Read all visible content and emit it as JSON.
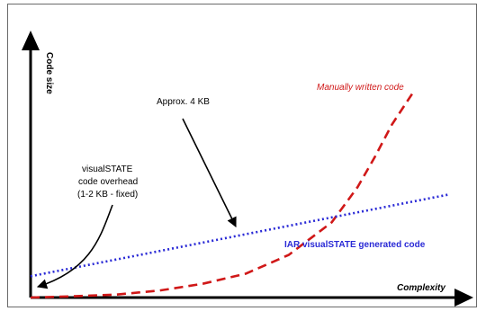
{
  "chart_data": {
    "type": "line",
    "title": "",
    "xlabel": "Complexity",
    "ylabel": "Code size",
    "ylim": [
      0,
      10
    ],
    "xlim": [
      0,
      10
    ],
    "grid": false,
    "series": [
      {
        "name": "Manually written code",
        "color": "#d01818",
        "style": "dashed",
        "x": [
          0,
          1,
          2,
          3,
          4,
          5,
          6,
          7,
          7.6,
          8,
          8.4,
          8.9
        ],
        "y": [
          0,
          0.05,
          0.12,
          0.28,
          0.55,
          0.95,
          1.7,
          3.0,
          4.4,
          5.6,
          6.9,
          8.2
        ]
      },
      {
        "name": "IAR visualSTATE generated code",
        "color": "#2a2ad6",
        "style": "dotted",
        "x": [
          0,
          9.7
        ],
        "y": [
          0.85,
          4.1
        ]
      }
    ],
    "annotations": {
      "approx": "Approx. 4 KB",
      "overhead_lines": [
        "visualSTATE",
        "code overhead",
        "(1-2 KB - fixed)"
      ]
    }
  }
}
